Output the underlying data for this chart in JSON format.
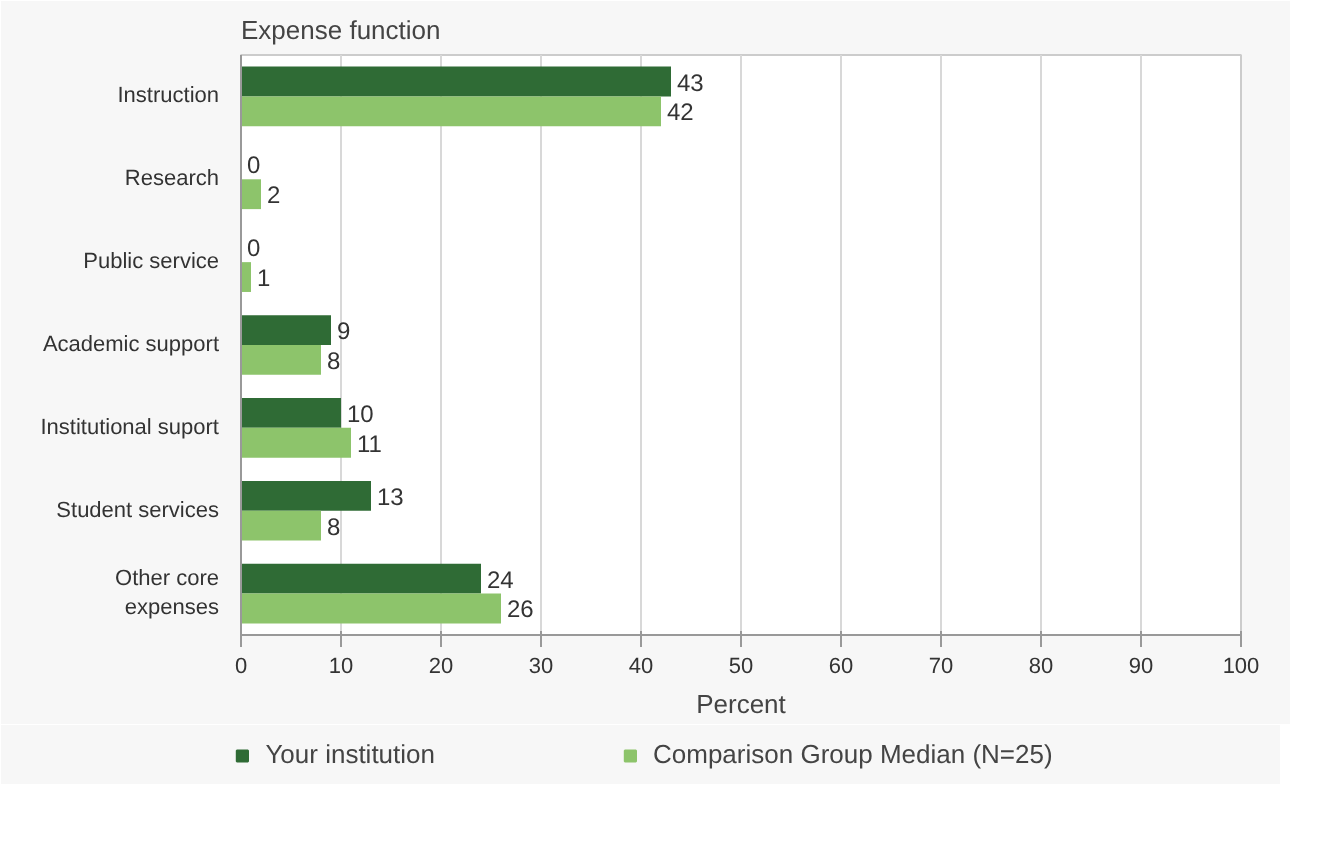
{
  "chart_data": {
    "type": "bar",
    "orientation": "horizontal",
    "ylabel": "Expense function",
    "xlabel": "Percent",
    "categories": [
      "Instruction",
      "Research",
      "Public service",
      "Academic support",
      "Institutional suport",
      "Student services",
      "Other core\nexpenses"
    ],
    "series": [
      {
        "name": "Your institution",
        "color": "#2f6b35",
        "values": [
          43,
          0,
          0,
          9,
          10,
          13,
          24
        ]
      },
      {
        "name": "Comparison Group Median (N=25)",
        "color": "#8dc46b",
        "values": [
          42,
          2,
          1,
          8,
          11,
          8,
          26
        ]
      }
    ],
    "xlim": [
      0,
      100
    ],
    "xticks": [
      0,
      10,
      20,
      30,
      40,
      50,
      60,
      70,
      80,
      90,
      100
    ],
    "grid": "x",
    "legend": "bottom",
    "data_labels": true
  }
}
